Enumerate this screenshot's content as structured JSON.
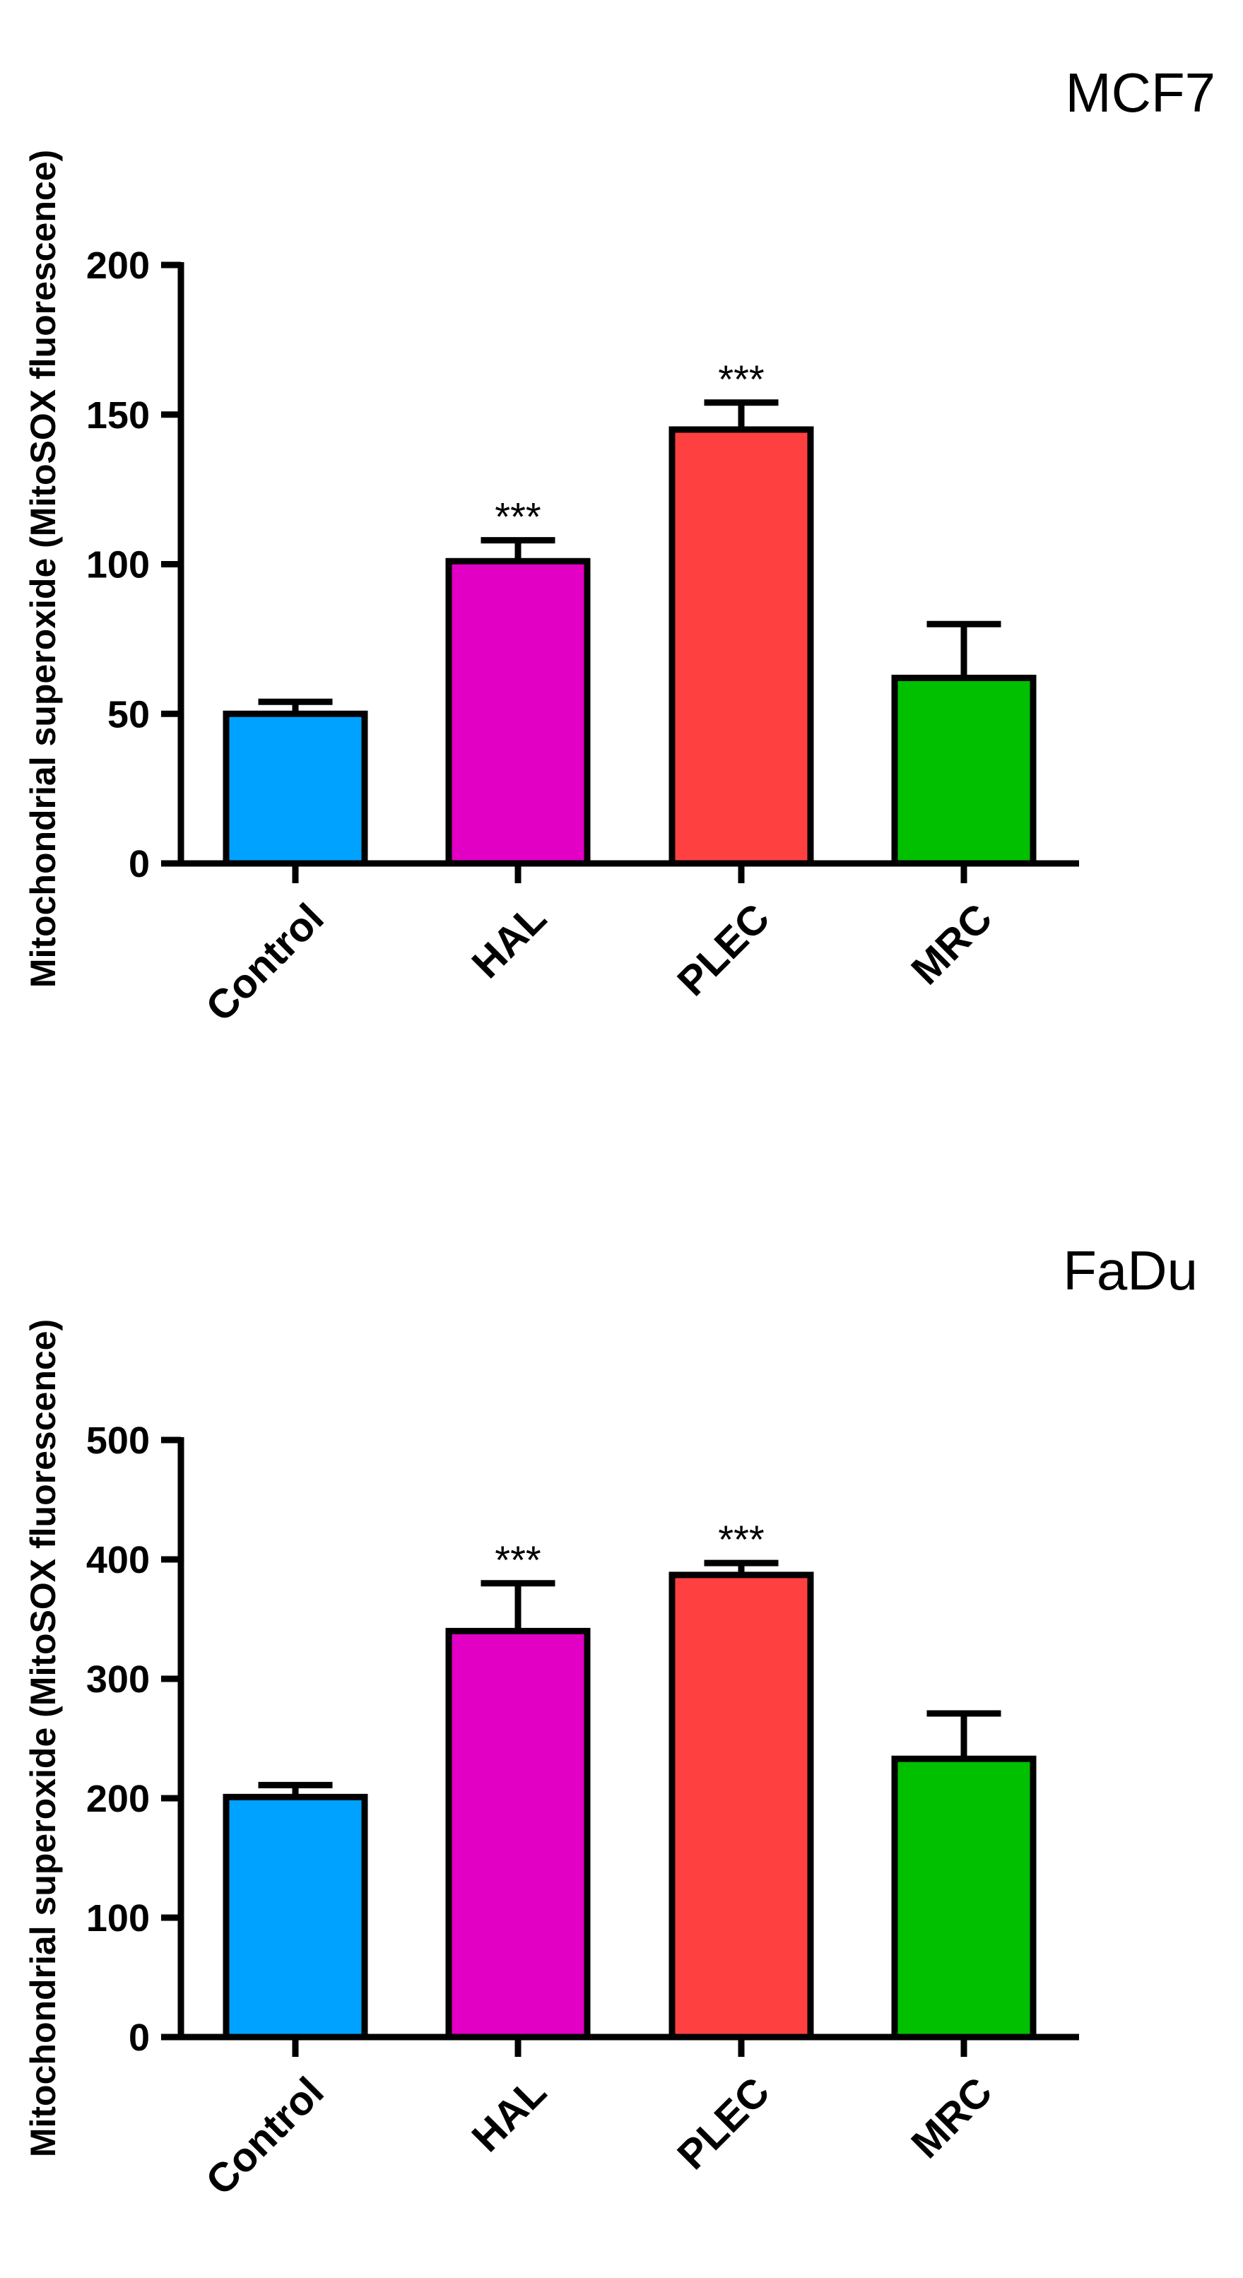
{
  "chart_data": [
    {
      "type": "bar",
      "title": "MCF7",
      "ylabel": "Mitochondrial superoxide (MitoSOX fluorescence)",
      "xlabel": "",
      "categories": [
        "Control",
        "HAL",
        "PLEC",
        "MRC"
      ],
      "values": [
        50,
        101,
        145,
        62
      ],
      "errors": [
        4,
        7,
        9,
        18
      ],
      "significance": [
        "",
        "***",
        "***",
        ""
      ],
      "ylim": [
        0,
        200
      ],
      "yticks": [
        0,
        50,
        100,
        150,
        200
      ],
      "grid": false,
      "legend": "none"
    },
    {
      "type": "bar",
      "title": "FaDu",
      "ylabel": "Mitochondrial superoxide (MitoSOX fluorescence)",
      "xlabel": "",
      "categories": [
        "Control",
        "HAL",
        "PLEC",
        "MRC"
      ],
      "values": [
        201,
        340,
        387,
        233
      ],
      "errors": [
        10,
        40,
        10,
        38
      ],
      "significance": [
        "",
        "***",
        "***",
        ""
      ],
      "ylim": [
        0,
        500
      ],
      "yticks": [
        0,
        100,
        200,
        300,
        400,
        500
      ],
      "grid": false,
      "legend": "none"
    }
  ],
  "colors": {
    "Control": "#00a2ff",
    "HAL": "#e100c3",
    "PLEC": "#ff4040",
    "MRC": "#00c000",
    "outline": "#000000"
  }
}
